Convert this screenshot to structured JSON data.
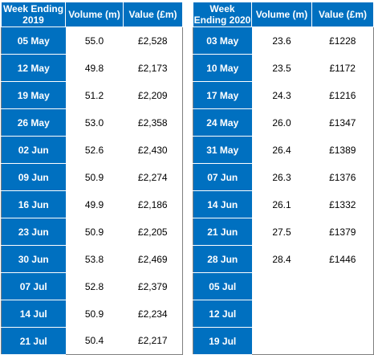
{
  "chart_data": [
    {
      "type": "table",
      "columns": [
        "Week Ending 2019",
        "Volume (m)",
        "Value (£m)"
      ],
      "rows": [
        [
          "05 May",
          "55.0",
          "£2,528"
        ],
        [
          "12 May",
          "49.8",
          "£2,173"
        ],
        [
          "19 May",
          "51.2",
          "£2,209"
        ],
        [
          "26 May",
          "53.0",
          "£2,358"
        ],
        [
          "02 Jun",
          "52.6",
          "£2,430"
        ],
        [
          "09 Jun",
          "50.9",
          "£2,274"
        ],
        [
          "16 Jun",
          "49.9",
          "£2,186"
        ],
        [
          "23 Jun",
          "50.9",
          "£2,205"
        ],
        [
          "30 Jun",
          "53.8",
          "£2,469"
        ],
        [
          "07 Jul",
          "52.8",
          "£2,379"
        ],
        [
          "14 Jul",
          "50.9",
          "£2,234"
        ],
        [
          "21 Jul",
          "50.4",
          "£2,217"
        ]
      ]
    },
    {
      "type": "table",
      "columns": [
        "Week Ending 2020",
        "Volume (m)",
        "Value (£m)"
      ],
      "rows": [
        [
          "03 May",
          "23.6",
          "£1228"
        ],
        [
          "10 May",
          "23.5",
          "£1172"
        ],
        [
          "17 May",
          "24.3",
          "£1216"
        ],
        [
          "24 May",
          "26.0",
          "£1347"
        ],
        [
          "31 May",
          "26.4",
          "£1389"
        ],
        [
          "07 Jun",
          "26.3",
          "£1376"
        ],
        [
          "14 Jun",
          "26.1",
          "£1332"
        ],
        [
          "21 Jun",
          "27.5",
          "£1379"
        ],
        [
          "28 Jun",
          "28.4",
          "£1446"
        ],
        [
          "05 Jul",
          "",
          ""
        ],
        [
          "12 Jul",
          "",
          ""
        ],
        [
          "19 Jul",
          "",
          ""
        ]
      ]
    }
  ],
  "colors": {
    "header_fill": "#0070c0",
    "header_text": "#ffffff"
  }
}
